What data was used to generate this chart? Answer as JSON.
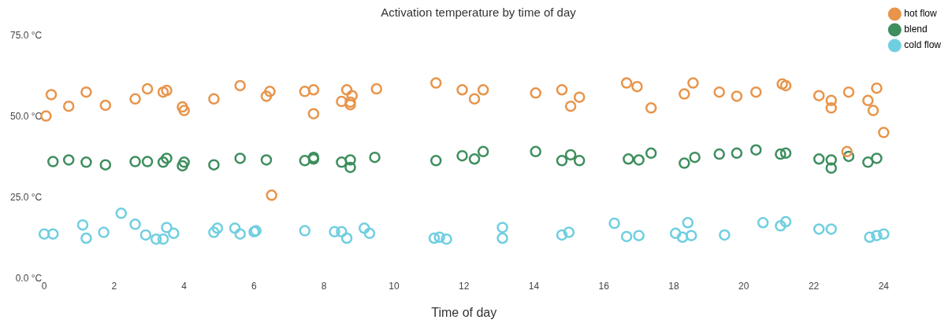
{
  "chart_data": {
    "type": "scatter",
    "title": "Activation temperature by time of day",
    "xlabel": "Time of day",
    "xlim": [
      0,
      24
    ],
    "xticks": [
      0,
      2,
      4,
      6,
      8,
      10,
      12,
      14,
      16,
      18,
      20,
      22,
      24
    ],
    "ylim": [
      0,
      75
    ],
    "yticks": [
      {
        "value": 0,
        "label": "0.0 °C"
      },
      {
        "value": 25,
        "label": "25.0 °C"
      },
      {
        "value": 50,
        "label": "50.0 °C"
      },
      {
        "value": 75,
        "label": "75.0 °C"
      }
    ],
    "grid": false,
    "legend": "top right",
    "marker": "circle",
    "series": [
      {
        "name": "hot flow",
        "color": "#e8944a",
        "x": [
          0.05,
          0.2,
          0.7,
          1.2,
          1.75,
          2.6,
          2.95,
          3.4,
          3.5,
          3.95,
          4.0,
          4.85,
          5.6,
          6.35,
          6.45,
          6.5,
          7.45,
          7.7,
          7.7,
          8.5,
          8.65,
          8.8,
          8.75,
          8.75,
          9.5,
          11.2,
          11.95,
          12.3,
          12.55,
          14.05,
          14.8,
          15.05,
          15.3,
          16.65,
          16.95,
          17.35,
          18.3,
          18.55,
          19.3,
          19.8,
          20.35,
          21.1,
          21.2,
          22.15,
          22.5,
          22.5,
          22.95,
          23.0,
          23.55,
          23.7,
          23.8,
          24.0
        ],
        "values": [
          50.3,
          56.9,
          53.3,
          57.7,
          53.6,
          55.6,
          58.7,
          57.7,
          58.2,
          53.1,
          52.0,
          55.6,
          59.7,
          56.4,
          57.9,
          25.8,
          57.9,
          58.4,
          51.0,
          54.8,
          58.4,
          56.6,
          54.6,
          53.8,
          58.7,
          60.5,
          58.4,
          55.6,
          58.4,
          57.4,
          58.4,
          53.3,
          56.1,
          60.5,
          59.4,
          52.8,
          57.1,
          60.5,
          57.7,
          56.4,
          57.7,
          60.2,
          59.7,
          56.6,
          55.1,
          52.8,
          39.3,
          57.7,
          55.1,
          52.0,
          58.9,
          45.2
        ]
      },
      {
        "name": "blend",
        "color": "#3e8e5e",
        "x": [
          0.25,
          0.7,
          1.2,
          1.75,
          2.6,
          2.95,
          3.4,
          3.5,
          3.95,
          4.0,
          4.85,
          5.6,
          6.35,
          7.45,
          7.7,
          7.7,
          8.5,
          8.75,
          8.75,
          9.45,
          11.2,
          11.95,
          12.3,
          12.55,
          14.05,
          14.8,
          15.05,
          15.3,
          16.7,
          17.0,
          17.35,
          18.3,
          18.6,
          19.3,
          19.8,
          20.35,
          21.05,
          21.2,
          22.15,
          22.5,
          22.5,
          23.0,
          23.55,
          23.8
        ],
        "values": [
          36.2,
          36.7,
          36.0,
          35.2,
          36.2,
          36.2,
          36.0,
          37.2,
          34.9,
          36.0,
          35.2,
          37.2,
          36.7,
          36.5,
          37.5,
          37.0,
          36.0,
          36.7,
          34.4,
          37.5,
          36.5,
          38.0,
          37.0,
          39.3,
          39.3,
          36.5,
          38.3,
          36.5,
          37.0,
          36.7,
          38.8,
          35.7,
          37.5,
          38.5,
          38.8,
          39.8,
          38.5,
          38.8,
          37.0,
          36.7,
          34.2,
          37.8,
          36.0,
          37.2
        ]
      },
      {
        "name": "cold flow",
        "color": "#6fcfe0",
        "x": [
          0.0,
          0.25,
          1.1,
          1.2,
          1.7,
          2.2,
          2.6,
          2.9,
          3.2,
          3.4,
          3.5,
          3.7,
          4.85,
          4.95,
          5.45,
          5.6,
          6.0,
          6.05,
          7.45,
          8.3,
          8.5,
          8.65,
          9.15,
          9.3,
          11.15,
          11.3,
          11.5,
          13.1,
          13.1,
          14.8,
          15.0,
          16.3,
          16.65,
          17.0,
          18.05,
          18.25,
          18.4,
          18.5,
          19.45,
          20.55,
          21.05,
          21.2,
          22.15,
          22.5,
          23.6,
          23.8,
          24.0
        ],
        "values": [
          13.8,
          13.8,
          16.6,
          12.5,
          14.3,
          20.2,
          16.8,
          13.5,
          12.2,
          12.2,
          15.8,
          14.0,
          14.3,
          15.6,
          15.6,
          13.8,
          14.5,
          14.8,
          14.8,
          14.5,
          14.5,
          12.5,
          15.6,
          14.0,
          12.5,
          12.8,
          12.2,
          15.8,
          12.5,
          13.5,
          14.3,
          17.1,
          13.0,
          13.3,
          14.0,
          12.8,
          17.3,
          13.3,
          13.5,
          17.3,
          16.3,
          17.6,
          15.3,
          15.3,
          12.8,
          13.3,
          13.8
        ]
      }
    ]
  }
}
